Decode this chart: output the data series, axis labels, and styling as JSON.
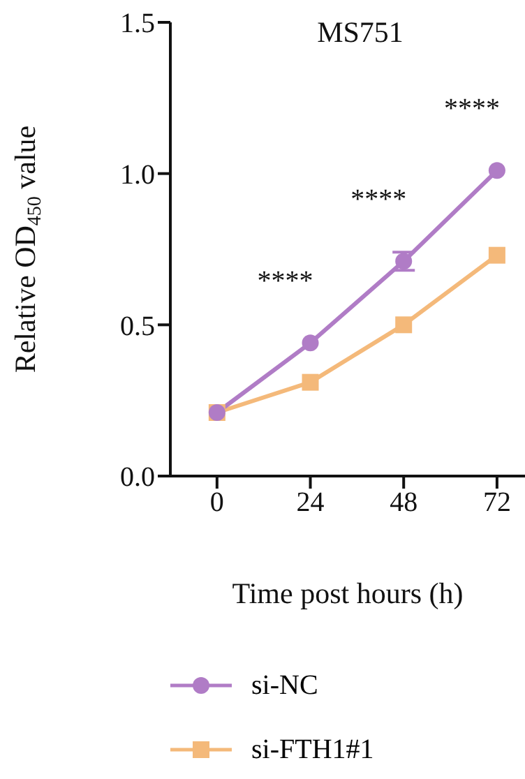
{
  "chart_data": {
    "type": "line",
    "title": "MS751",
    "xlabel": "Time post hours (h)",
    "ylabel": "Relative OD$_{450}$ value",
    "categories": [
      "0",
      "24",
      "48",
      "72"
    ],
    "series": [
      {
        "name": "si-NC",
        "color": "#b07cc6",
        "marker": "circle",
        "values": [
          0.21,
          0.44,
          0.71,
          1.01
        ],
        "errors": [
          null,
          null,
          0.03,
          null
        ]
      },
      {
        "name": "si-FTH1#1",
        "color": "#f4b97a",
        "marker": "square",
        "values": [
          0.21,
          0.31,
          0.5,
          0.73
        ]
      }
    ],
    "ylim": [
      0,
      1.5
    ],
    "yticks": [
      {
        "value": 0,
        "label": "0.0"
      },
      0.5,
      {
        "value": 1,
        "label": "1.0"
      },
      1.5
    ],
    "grid": false,
    "legend": "bottom",
    "annotations": [
      "****",
      "****",
      "****"
    ]
  }
}
